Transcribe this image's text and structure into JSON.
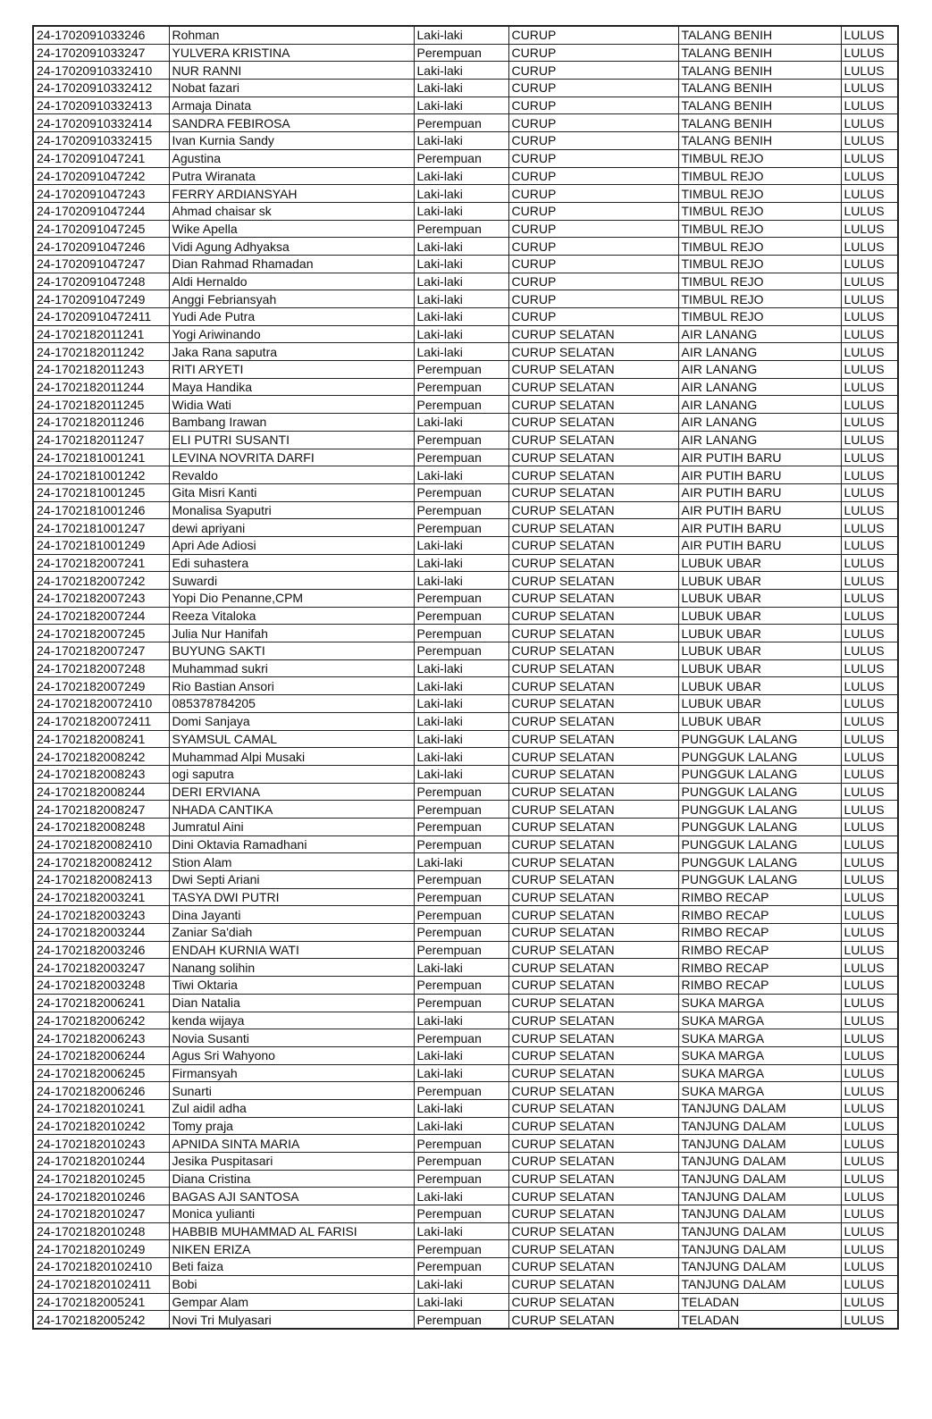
{
  "table": {
    "rows": [
      [
        "24-1702091033246",
        "Rohman",
        "Laki-laki",
        "CURUP",
        "TALANG BENIH",
        "LULUS"
      ],
      [
        "24-1702091033247",
        "YULVERA KRISTINA",
        "Perempuan",
        "CURUP",
        "TALANG BENIH",
        "LULUS"
      ],
      [
        "24-17020910332410",
        "NUR RANNI",
        "Laki-laki",
        "CURUP",
        "TALANG BENIH",
        "LULUS"
      ],
      [
        "24-17020910332412",
        "Nobat fazari",
        "Laki-laki",
        "CURUP",
        "TALANG BENIH",
        "LULUS"
      ],
      [
        "24-17020910332413",
        "Armaja Dinata",
        "Laki-laki",
        "CURUP",
        "TALANG BENIH",
        "LULUS"
      ],
      [
        "24-17020910332414",
        "SANDRA FEBIROSA",
        "Perempuan",
        "CURUP",
        "TALANG BENIH",
        "LULUS"
      ],
      [
        "24-17020910332415",
        "Ivan Kurnia Sandy",
        "Laki-laki",
        "CURUP",
        "TALANG BENIH",
        "LULUS"
      ],
      [
        "24-1702091047241",
        "Agustina",
        "Perempuan",
        "CURUP",
        "TIMBUL REJO",
        "LULUS"
      ],
      [
        "24-1702091047242",
        "Putra Wiranata",
        "Laki-laki",
        "CURUP",
        "TIMBUL REJO",
        "LULUS"
      ],
      [
        "24-1702091047243",
        "FERRY ARDIANSYAH",
        "Laki-laki",
        "CURUP",
        "TIMBUL REJO",
        "LULUS"
      ],
      [
        "24-1702091047244",
        "Ahmad chaisar sk",
        "Laki-laki",
        "CURUP",
        "TIMBUL REJO",
        "LULUS"
      ],
      [
        "24-1702091047245",
        "Wike Apella",
        "Perempuan",
        "CURUP",
        "TIMBUL REJO",
        "LULUS"
      ],
      [
        "24-1702091047246",
        "Vidi Agung Adhyaksa",
        "Laki-laki",
        "CURUP",
        "TIMBUL REJO",
        "LULUS"
      ],
      [
        "24-1702091047247",
        "Dian Rahmad Rhamadan",
        "Laki-laki",
        "CURUP",
        "TIMBUL REJO",
        "LULUS"
      ],
      [
        "24-1702091047248",
        "Aldi Hernaldo",
        "Laki-laki",
        "CURUP",
        "TIMBUL REJO",
        "LULUS"
      ],
      [
        "24-1702091047249",
        "Anggi Febriansyah",
        "Laki-laki",
        "CURUP",
        "TIMBUL REJO",
        "LULUS"
      ],
      [
        "24-17020910472411",
        "Yudi Ade Putra",
        "Laki-laki",
        "CURUP",
        "TIMBUL REJO",
        "LULUS"
      ],
      [
        "24-1702182011241",
        "Yogi Ariwinando",
        "Laki-laki",
        "CURUP SELATAN",
        "AIR LANANG",
        "LULUS"
      ],
      [
        "24-1702182011242",
        "Jaka Rana saputra",
        "Laki-laki",
        "CURUP SELATAN",
        "AIR LANANG",
        "LULUS"
      ],
      [
        "24-1702182011243",
        "RITI ARYETI",
        "Perempuan",
        "CURUP SELATAN",
        "AIR LANANG",
        "LULUS"
      ],
      [
        "24-1702182011244",
        "Maya Handika",
        "Perempuan",
        "CURUP SELATAN",
        "AIR LANANG",
        "LULUS"
      ],
      [
        "24-1702182011245",
        "Widia Wati",
        "Perempuan",
        "CURUP SELATAN",
        "AIR LANANG",
        "LULUS"
      ],
      [
        "24-1702182011246",
        "Bambang Irawan",
        "Laki-laki",
        "CURUP SELATAN",
        "AIR LANANG",
        "LULUS"
      ],
      [
        "24-1702182011247",
        "ELI PUTRI SUSANTI",
        "Perempuan",
        "CURUP SELATAN",
        "AIR LANANG",
        "LULUS"
      ],
      [
        "24-1702181001241",
        "LEVINA NOVRITA DARFI",
        "Perempuan",
        "CURUP SELATAN",
        "AIR PUTIH BARU",
        "LULUS"
      ],
      [
        "24-1702181001242",
        "Revaldo",
        "Laki-laki",
        "CURUP SELATAN",
        "AIR PUTIH BARU",
        "LULUS"
      ],
      [
        "24-1702181001245",
        "Gita Misri Kanti",
        "Perempuan",
        "CURUP SELATAN",
        "AIR PUTIH BARU",
        "LULUS"
      ],
      [
        "24-1702181001246",
        "Monalisa Syaputri",
        "Perempuan",
        "CURUP SELATAN",
        "AIR PUTIH BARU",
        "LULUS"
      ],
      [
        "24-1702181001247",
        "dewi apriyani",
        "Perempuan",
        "CURUP SELATAN",
        "AIR PUTIH BARU",
        "LULUS"
      ],
      [
        "24-1702181001249",
        "Apri Ade Adiosi",
        "Laki-laki",
        "CURUP SELATAN",
        "AIR PUTIH BARU",
        "LULUS"
      ],
      [
        "24-1702182007241",
        "Edi suhastera",
        "Laki-laki",
        "CURUP SELATAN",
        "LUBUK UBAR",
        "LULUS"
      ],
      [
        "24-1702182007242",
        "Suwardi",
        "Laki-laki",
        "CURUP SELATAN",
        "LUBUK UBAR",
        "LULUS"
      ],
      [
        "24-1702182007243",
        "Yopi Dio Penanne,CPM",
        "Perempuan",
        "CURUP SELATAN",
        "LUBUK UBAR",
        "LULUS"
      ],
      [
        "24-1702182007244",
        "Reeza Vitaloka",
        "Perempuan",
        "CURUP SELATAN",
        "LUBUK UBAR",
        "LULUS"
      ],
      [
        "24-1702182007245",
        "Julia Nur Hanifah",
        "Perempuan",
        "CURUP SELATAN",
        "LUBUK UBAR",
        "LULUS"
      ],
      [
        "24-1702182007247",
        "BUYUNG SAKTI",
        "Perempuan",
        "CURUP SELATAN",
        "LUBUK UBAR",
        "LULUS"
      ],
      [
        "24-1702182007248",
        "Muhammad sukri",
        "Laki-laki",
        "CURUP SELATAN",
        "LUBUK UBAR",
        "LULUS"
      ],
      [
        "24-1702182007249",
        "Rio Bastian Ansori",
        "Laki-laki",
        "CURUP SELATAN",
        "LUBUK UBAR",
        "LULUS"
      ],
      [
        "24-17021820072410",
        "085378784205",
        "Laki-laki",
        "CURUP SELATAN",
        "LUBUK UBAR",
        "LULUS"
      ],
      [
        "24-17021820072411",
        "Domi Sanjaya",
        "Laki-laki",
        "CURUP SELATAN",
        "LUBUK UBAR",
        "LULUS"
      ],
      [
        "24-1702182008241",
        "SYAMSUL CAMAL",
        "Laki-laki",
        "CURUP SELATAN",
        "PUNGGUK LALANG",
        "LULUS"
      ],
      [
        "24-1702182008242",
        "Muhammad Alpi Musaki",
        "Laki-laki",
        "CURUP SELATAN",
        "PUNGGUK LALANG",
        "LULUS"
      ],
      [
        "24-1702182008243",
        "ogi saputra",
        "Laki-laki",
        "CURUP SELATAN",
        "PUNGGUK LALANG",
        "LULUS"
      ],
      [
        "24-1702182008244",
        "DERI ERVIANA",
        "Perempuan",
        "CURUP SELATAN",
        "PUNGGUK LALANG",
        "LULUS"
      ],
      [
        "24-1702182008247",
        "NHADA CANTIKA",
        "Perempuan",
        "CURUP SELATAN",
        "PUNGGUK LALANG",
        "LULUS"
      ],
      [
        "24-1702182008248",
        "Jumratul Aini",
        "Perempuan",
        "CURUP SELATAN",
        "PUNGGUK LALANG",
        "LULUS"
      ],
      [
        "24-17021820082410",
        "Dini Oktavia Ramadhani",
        "Perempuan",
        "CURUP SELATAN",
        "PUNGGUK LALANG",
        "LULUS"
      ],
      [
        "24-17021820082412",
        "Stion Alam",
        "Laki-laki",
        "CURUP SELATAN",
        "PUNGGUK LALANG",
        "LULUS"
      ],
      [
        "24-17021820082413",
        "Dwi Septi Ariani",
        "Perempuan",
        "CURUP SELATAN",
        "PUNGGUK LALANG",
        "LULUS"
      ],
      [
        "24-1702182003241",
        "TASYA DWI PUTRI",
        "Perempuan",
        "CURUP SELATAN",
        "RIMBO RECAP",
        "LULUS"
      ],
      [
        "24-1702182003243",
        "Dina Jayanti",
        "Perempuan",
        "CURUP SELATAN",
        "RIMBO RECAP",
        "LULUS"
      ],
      [
        "24-1702182003244",
        "Zaniar Sa'diah",
        "Perempuan",
        "CURUP SELATAN",
        "RIMBO RECAP",
        "LULUS"
      ],
      [
        "24-1702182003246",
        "ENDAH KURNIA WATI",
        "Perempuan",
        "CURUP SELATAN",
        "RIMBO RECAP",
        "LULUS"
      ],
      [
        "24-1702182003247",
        "Nanang solihin",
        "Laki-laki",
        "CURUP SELATAN",
        "RIMBO RECAP",
        "LULUS"
      ],
      [
        "24-1702182003248",
        "Tiwi Oktaria",
        "Perempuan",
        "CURUP SELATAN",
        "RIMBO RECAP",
        "LULUS"
      ],
      [
        "24-1702182006241",
        "Dian Natalia",
        "Perempuan",
        "CURUP SELATAN",
        "SUKA MARGA",
        "LULUS"
      ],
      [
        "24-1702182006242",
        "kenda wijaya",
        "Laki-laki",
        "CURUP SELATAN",
        "SUKA MARGA",
        "LULUS"
      ],
      [
        "24-1702182006243",
        "Novia Susanti",
        "Perempuan",
        "CURUP SELATAN",
        "SUKA MARGA",
        "LULUS"
      ],
      [
        "24-1702182006244",
        "Agus Sri Wahyono",
        "Laki-laki",
        "CURUP SELATAN",
        "SUKA MARGA",
        "LULUS"
      ],
      [
        "24-1702182006245",
        "Firmansyah",
        "Laki-laki",
        "CURUP SELATAN",
        "SUKA MARGA",
        "LULUS"
      ],
      [
        "24-1702182006246",
        "Sunarti",
        "Perempuan",
        "CURUP SELATAN",
        "SUKA MARGA",
        "LULUS"
      ],
      [
        "24-1702182010241",
        "Zul aidil adha",
        "Laki-laki",
        "CURUP SELATAN",
        "TANJUNG DALAM",
        "LULUS"
      ],
      [
        "24-1702182010242",
        "Tomy praja",
        "Laki-laki",
        "CURUP SELATAN",
        "TANJUNG DALAM",
        "LULUS"
      ],
      [
        "24-1702182010243",
        "APNIDA SINTA MARIA",
        "Perempuan",
        "CURUP SELATAN",
        "TANJUNG DALAM",
        "LULUS"
      ],
      [
        "24-1702182010244",
        "Jesika Puspitasari",
        "Perempuan",
        "CURUP SELATAN",
        "TANJUNG DALAM",
        "LULUS"
      ],
      [
        "24-1702182010245",
        "Diana Cristina",
        "Perempuan",
        "CURUP SELATAN",
        "TANJUNG DALAM",
        "LULUS"
      ],
      [
        "24-1702182010246",
        "BAGAS AJI SANTOSA",
        "Laki-laki",
        "CURUP SELATAN",
        "TANJUNG DALAM",
        "LULUS"
      ],
      [
        "24-1702182010247",
        "Monica yulianti",
        "Perempuan",
        "CURUP SELATAN",
        "TANJUNG DALAM",
        "LULUS"
      ],
      [
        "24-1702182010248",
        "HABBIB MUHAMMAD AL FARISI",
        "Laki-laki",
        "CURUP SELATAN",
        "TANJUNG DALAM",
        "LULUS"
      ],
      [
        "24-1702182010249",
        "NIKEN ERIZA",
        "Perempuan",
        "CURUP SELATAN",
        "TANJUNG DALAM",
        "LULUS"
      ],
      [
        "24-17021820102410",
        "Beti faiza",
        "Perempuan",
        "CURUP SELATAN",
        "TANJUNG DALAM",
        "LULUS"
      ],
      [
        "24-17021820102411",
        "Bobi",
        "Laki-laki",
        "CURUP SELATAN",
        "TANJUNG DALAM",
        "LULUS"
      ],
      [
        "24-1702182005241",
        "Gempar Alam",
        "Laki-laki",
        "CURUP SELATAN",
        "TELADAN",
        "LULUS"
      ],
      [
        "24-1702182005242",
        "Novi Tri Mulyasari",
        "Perempuan",
        "CURUP SELATAN",
        "TELADAN",
        "LULUS"
      ]
    ]
  }
}
